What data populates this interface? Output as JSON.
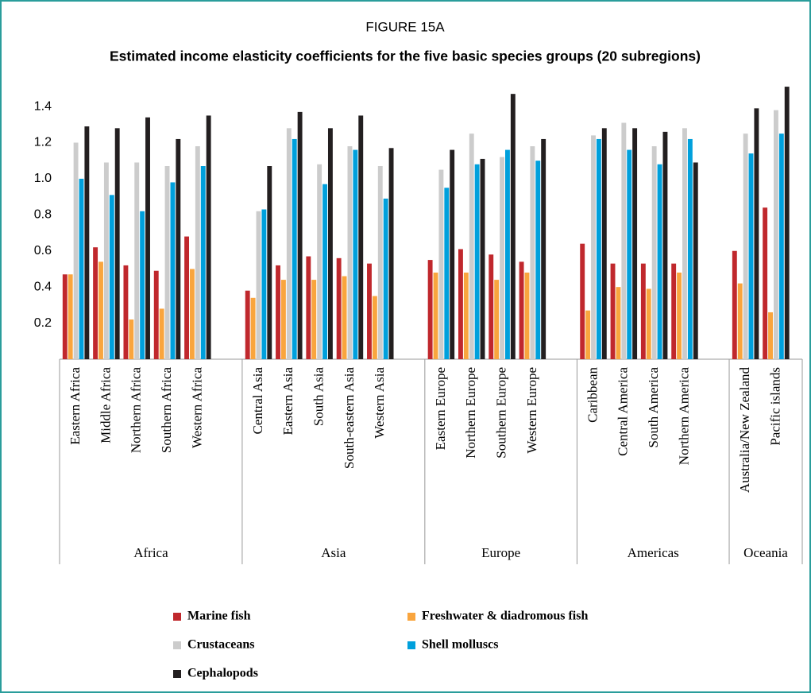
{
  "chart_data": {
    "type": "grouped_bar",
    "title": "FIGURE 15A",
    "subtitle": "Estimated income elasticity coefficients for the five basic species groups (20 subregions)",
    "groups": [
      {
        "name": "Africa",
        "categories": [
          "Eastern Africa",
          "Middle Africa",
          "Northern Africa",
          "Southern Africa",
          "Western Africa"
        ]
      },
      {
        "name": "Asia",
        "categories": [
          "Central Asia",
          "Eastern Asia",
          "South Asia",
          "South-eastern Asia",
          "Western Asia"
        ]
      },
      {
        "name": "Europe",
        "categories": [
          "Eastern Europe",
          "Northern Europe",
          "Southern Europe",
          "Western Europe"
        ]
      },
      {
        "name": "Americas",
        "categories": [
          "Caribbean",
          "Central America",
          "South America",
          "Northern America"
        ]
      },
      {
        "name": "Oceania",
        "categories": [
          "Australia/New Zealand",
          "Pacific islands"
        ]
      }
    ],
    "series": [
      {
        "name": "Marine fish",
        "color": "#c0282d",
        "values": [
          0.47,
          0.62,
          0.52,
          0.49,
          0.68,
          0.38,
          0.52,
          0.57,
          0.56,
          0.53,
          0.55,
          0.61,
          0.58,
          0.54,
          0.64,
          0.53,
          0.53,
          0.53,
          0.6,
          0.84
        ]
      },
      {
        "name": "Freshwater & diadromous fish",
        "color": "#f9a53e",
        "values": [
          0.47,
          0.54,
          0.22,
          0.28,
          0.5,
          0.34,
          0.44,
          0.44,
          0.46,
          0.35,
          0.48,
          0.48,
          0.44,
          0.48,
          0.27,
          0.4,
          0.39,
          0.48,
          0.42,
          0.26
        ]
      },
      {
        "name": "Crustaceans",
        "color": "#cccccc",
        "values": [
          1.2,
          1.09,
          1.09,
          1.07,
          1.18,
          0.82,
          1.28,
          1.08,
          1.18,
          1.07,
          1.05,
          1.25,
          1.12,
          1.18,
          1.24,
          1.31,
          1.18,
          1.28,
          1.25,
          1.38
        ]
      },
      {
        "name": "Shell molluscs",
        "color": "#00a0dc",
        "values": [
          1.0,
          0.91,
          0.82,
          0.98,
          1.07,
          0.83,
          1.22,
          0.97,
          1.16,
          0.89,
          0.95,
          1.08,
          1.16,
          1.1,
          1.22,
          1.16,
          1.08,
          1.22,
          1.14,
          1.25
        ]
      },
      {
        "name": "Cephalopods",
        "color": "#231f20",
        "values": [
          1.29,
          1.28,
          1.34,
          1.22,
          1.35,
          1.07,
          1.37,
          1.28,
          1.35,
          1.17,
          1.16,
          1.11,
          1.47,
          1.22,
          1.28,
          1.28,
          1.26,
          1.09,
          1.39,
          1.51
        ]
      }
    ],
    "ylim": [
      0,
      1.55
    ],
    "yticks": [
      0.2,
      0.4,
      0.6,
      0.8,
      {
        "value": 1,
        "label": "1.0"
      },
      1.2,
      1.4
    ]
  }
}
